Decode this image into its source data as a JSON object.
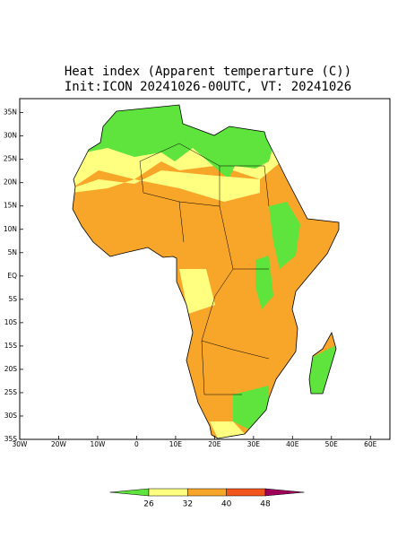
{
  "map": {
    "title": "Heat index (Apparent temperarture (C))",
    "subtitle": "Init:ICON 20241026-00UTC, VT: 20241026",
    "xlim": [
      -30,
      65
    ],
    "ylim": [
      -35,
      38
    ],
    "xticks": [
      {
        "value": -30,
        "label": "30W"
      },
      {
        "value": -20,
        "label": "20W"
      },
      {
        "value": -10,
        "label": "10W"
      },
      0,
      {
        "value": 10,
        "label": "10E"
      },
      {
        "value": 20,
        "label": "20E"
      },
      {
        "value": 30,
        "label": "30E"
      },
      {
        "value": 40,
        "label": "40E"
      },
      {
        "value": 50,
        "label": "50E"
      },
      {
        "value": 60,
        "label": "60E"
      }
    ],
    "yticks": [
      {
        "value": 35,
        "label": "35N"
      },
      {
        "value": 30,
        "label": "30N"
      },
      {
        "value": 25,
        "label": "25N"
      },
      {
        "value": 20,
        "label": "20N"
      },
      {
        "value": 15,
        "label": "15N"
      },
      {
        "value": 10,
        "label": "10N"
      },
      {
        "value": 5,
        "label": "5N"
      },
      {
        "value": 0,
        "label": "EQ"
      },
      {
        "value": -5,
        "label": "5S"
      },
      {
        "value": -10,
        "label": "10S"
      },
      {
        "value": -15,
        "label": "15S"
      },
      {
        "value": -20,
        "label": "20S"
      },
      {
        "value": -25,
        "label": "25S"
      },
      {
        "value": -30,
        "label": "30S"
      },
      {
        "value": -35,
        "label": "35S"
      }
    ],
    "colorbar": {
      "levels": [
        26,
        32,
        40,
        48
      ],
      "colors": [
        "#5ee43c",
        "#ffff80",
        "#f7a62a",
        "#f2561d",
        "#a0005a"
      ]
    }
  }
}
